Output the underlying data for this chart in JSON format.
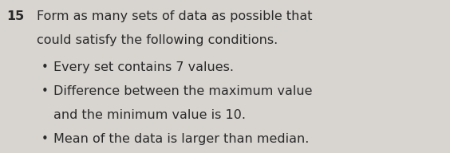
{
  "number": "15",
  "line1": "Form as many sets of data as possible that",
  "line2": "could satisfy the following conditions.",
  "bullets": [
    "Every set contains 7 values.",
    "Difference between the maximum value",
    "and the minimum value is 10.",
    "Mean of the data is larger than median."
  ],
  "bullet_flags": [
    true,
    true,
    false,
    true
  ],
  "bg_color": "#d8d5d0",
  "text_color": "#2a2a2a",
  "number_fontsize": 11.5,
  "main_fontsize": 11.5,
  "bullet_fontsize": 11.5
}
